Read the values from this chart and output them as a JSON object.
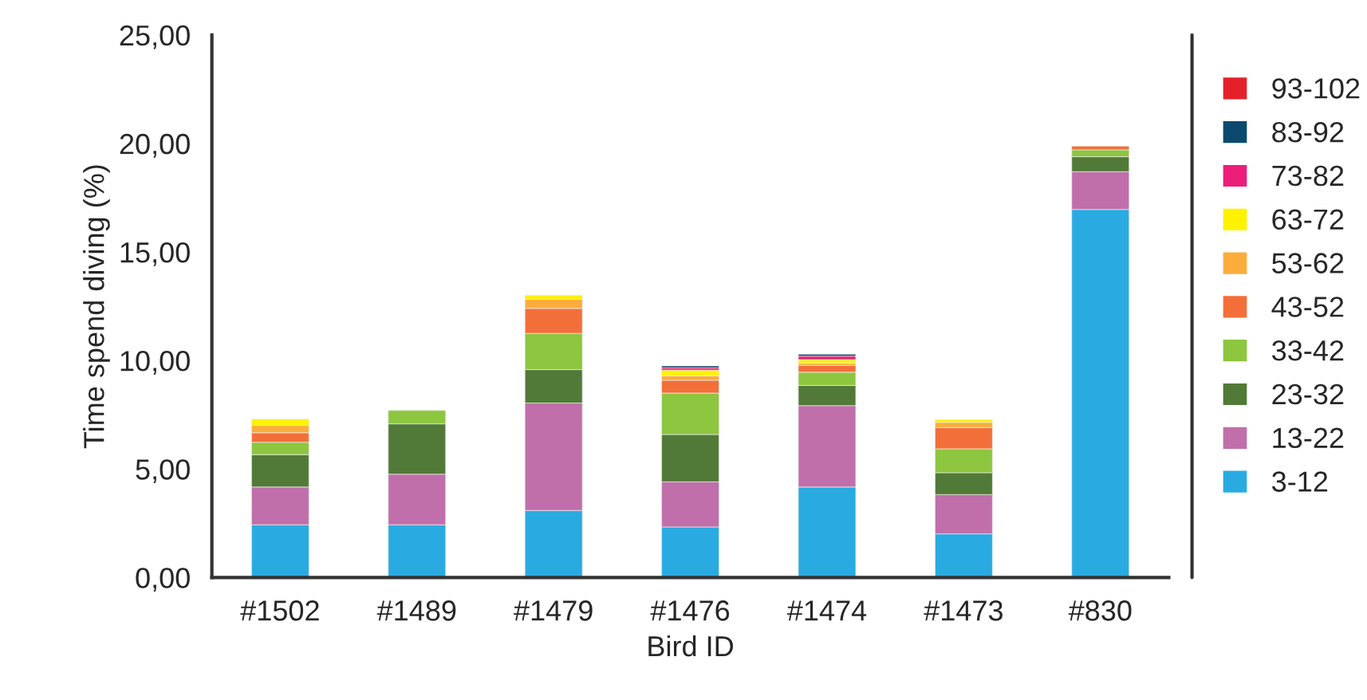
{
  "chart_data": {
    "type": "bar",
    "stacked": true,
    "xlabel": "Bird ID",
    "ylabel": "Time spend diving (%)",
    "categories": [
      "#1502",
      "#1489",
      "#1479",
      "#1476",
      "#1474",
      "#1473",
      "#830"
    ],
    "ylim": [
      0,
      25
    ],
    "yticks": [
      {
        "value": 0,
        "label": "0,00"
      },
      {
        "value": 5,
        "label": "5,00"
      },
      {
        "value": 10,
        "label": "10,00"
      },
      {
        "value": 15,
        "label": "15,00"
      },
      {
        "value": 20,
        "label": "20,00"
      },
      {
        "value": 25,
        "label": "25,00"
      }
    ],
    "grid": false,
    "legend": "right",
    "series": [
      {
        "name": "3-12",
        "color": "#29abe2",
        "values": [
          2.43,
          2.43,
          3.09,
          2.33,
          4.17,
          2.01,
          16.96
        ]
      },
      {
        "name": "13-22",
        "color": "#c06fab",
        "values": [
          1.74,
          2.33,
          4.95,
          2.08,
          3.75,
          1.81,
          1.74
        ]
      },
      {
        "name": "23-32",
        "color": "#517a38",
        "values": [
          1.49,
          2.32,
          1.54,
          2.18,
          0.93,
          1.01,
          0.69
        ]
      },
      {
        "name": "33-42",
        "color": "#8dc63f",
        "values": [
          0.57,
          0.62,
          1.67,
          1.91,
          0.61,
          1.1,
          0.32
        ]
      },
      {
        "name": "43-52",
        "color": "#f36f3a",
        "values": [
          0.44,
          null,
          1.15,
          0.59,
          0.32,
          0.98,
          0.17
        ]
      },
      {
        "name": "53-62",
        "color": "#fbad3c",
        "values": [
          0.34,
          null,
          0.42,
          0.2,
          0.1,
          0.24,
          null
        ]
      },
      {
        "name": "63-72",
        "color": "#fff200",
        "values": [
          0.29,
          null,
          0.19,
          0.27,
          0.16,
          0.13,
          null
        ]
      },
      {
        "name": "73-82",
        "color": "#ec1e79",
        "values": [
          null,
          null,
          null,
          0.1,
          0.16,
          null,
          null
        ]
      },
      {
        "name": "83-92",
        "color": "#0b4a6e",
        "values": [
          null,
          null,
          null,
          0.09,
          0.09,
          null,
          null
        ]
      },
      {
        "name": "93-102",
        "color": "#e5202b",
        "values": [
          null,
          null,
          null,
          null,
          null,
          null,
          null
        ]
      }
    ]
  }
}
